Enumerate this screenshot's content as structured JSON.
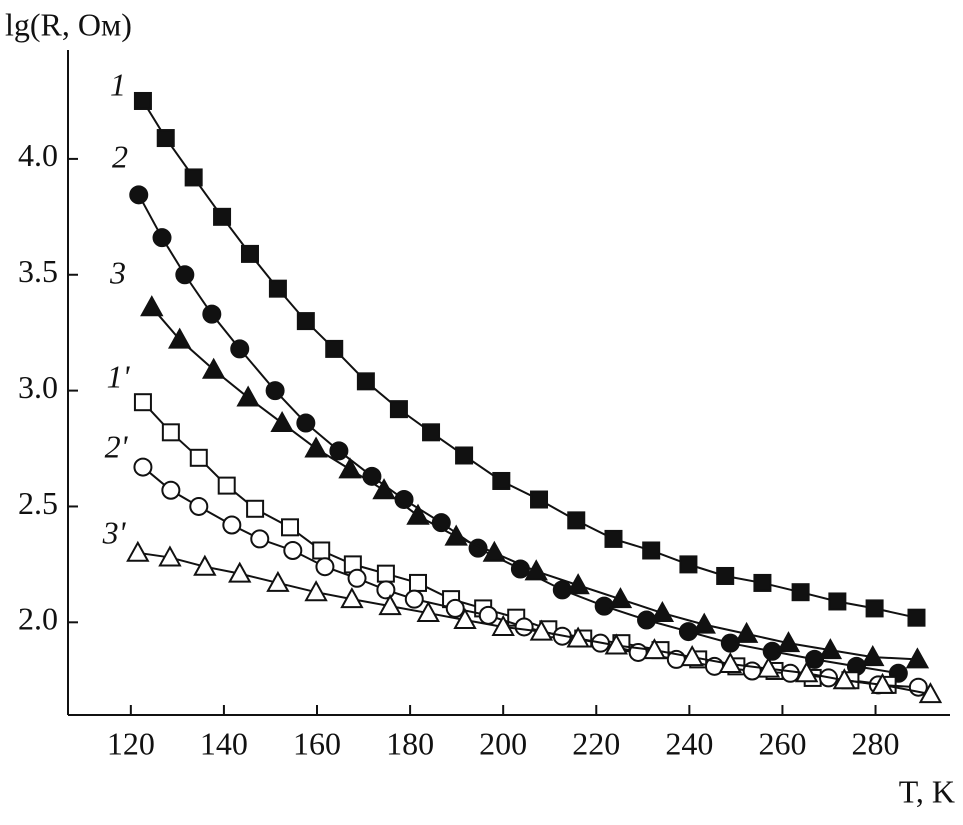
{
  "chart_data": {
    "type": "line",
    "x_label": "T, K",
    "y_label": "lg(R, Ом)",
    "xlim": [
      106.5,
      296
    ],
    "ylim": [
      1.6,
      4.47
    ],
    "xticks": [
      120,
      140,
      160,
      180,
      200,
      220,
      240,
      260,
      280
    ],
    "yticks": [
      {
        "value": 2,
        "label": "2.0"
      },
      2.5,
      {
        "value": 3,
        "label": "3.0"
      },
      3.5,
      {
        "value": 4,
        "label": "4.0"
      }
    ],
    "series": [
      {
        "name": "1",
        "color": "#111111",
        "marker": "square",
        "filled": true,
        "x": [
          122.6,
          127.5,
          133.5,
          139.6,
          145.6,
          151.6,
          157.6,
          163.7,
          170.5,
          177.6,
          184.5,
          191.6,
          199.6,
          207.7,
          215.7,
          223.7,
          231.8,
          239.8,
          247.7,
          255.7,
          263.9,
          271.8,
          279.8,
          288.8
        ],
        "values": [
          4.25,
          4.09,
          3.92,
          3.75,
          3.59,
          3.44,
          3.3,
          3.18,
          3.04,
          2.92,
          2.82,
          2.72,
          2.61,
          2.53,
          2.44,
          2.36,
          2.31,
          2.25,
          2.2,
          2.17,
          2.13,
          2.09,
          2.06,
          2.02
        ]
      },
      {
        "name": "2",
        "color": "#111111",
        "marker": "circle",
        "filled": true,
        "x": [
          121.7,
          126.7,
          131.6,
          137.4,
          143.4,
          151.0,
          157.6,
          164.7,
          171.8,
          178.7,
          186.7,
          194.6,
          203.7,
          212.7,
          221.7,
          230.8,
          239.8,
          248.8,
          257.8,
          266.9,
          275.9,
          284.9
        ],
        "values": [
          3.845,
          3.66,
          3.5,
          3.33,
          3.18,
          3.0,
          2.86,
          2.74,
          2.63,
          2.53,
          2.43,
          2.32,
          2.23,
          2.14,
          2.07,
          2.01,
          1.96,
          1.91,
          1.875,
          1.84,
          1.81,
          1.78
        ]
      },
      {
        "name": "3",
        "color": "#111111",
        "marker": "triangle",
        "filled": true,
        "x": [
          124.5,
          130.5,
          137.8,
          145.2,
          152.5,
          159.8,
          167.1,
          174.4,
          181.7,
          189.9,
          198.1,
          207.1,
          216.1,
          225.2,
          234.2,
          243.2,
          252.3,
          261.3,
          270.3,
          279.4,
          289.0
        ],
        "values": [
          3.36,
          3.22,
          3.09,
          2.97,
          2.86,
          2.75,
          2.66,
          2.57,
          2.46,
          2.37,
          2.3,
          2.22,
          2.16,
          2.1,
          2.04,
          1.99,
          1.95,
          1.91,
          1.88,
          1.85,
          1.84
        ]
      },
      {
        "name": "1'",
        "color": "#111111",
        "marker": "square",
        "filled": false,
        "x": [
          122.6,
          128.6,
          134.6,
          140.6,
          146.7,
          154.2,
          160.9,
          167.7,
          174.8,
          181.7,
          188.8,
          195.7,
          202.8,
          209.7,
          217.2,
          225.4,
          233.8,
          241.9,
          250.1,
          258.3,
          266.5,
          274.6,
          282.6
        ],
        "values": [
          2.95,
          2.82,
          2.71,
          2.59,
          2.49,
          2.41,
          2.31,
          2.25,
          2.21,
          2.17,
          2.1,
          2.06,
          2.02,
          1.97,
          1.93,
          1.91,
          1.88,
          1.84,
          1.81,
          1.79,
          1.76,
          1.75,
          1.73
        ]
      },
      {
        "name": "2'",
        "color": "#111111",
        "marker": "circle",
        "filled": false,
        "x": [
          122.6,
          128.6,
          134.6,
          141.7,
          147.7,
          154.8,
          161.7,
          168.6,
          174.8,
          180.9,
          189.7,
          196.8,
          204.5,
          212.7,
          220.9,
          229.0,
          237.2,
          245.4,
          253.5,
          261.7,
          269.9,
          280.6,
          289.2
        ],
        "values": [
          2.67,
          2.57,
          2.5,
          2.42,
          2.36,
          2.31,
          2.24,
          2.19,
          2.14,
          2.1,
          2.06,
          2.03,
          1.98,
          1.94,
          1.91,
          1.87,
          1.84,
          1.81,
          1.79,
          1.78,
          1.76,
          1.73,
          1.72
        ]
      },
      {
        "name": "3'",
        "color": "#111111",
        "marker": "triangle",
        "filled": false,
        "x": [
          121.5,
          128.4,
          135.9,
          143.4,
          151.6,
          159.8,
          167.5,
          175.7,
          183.9,
          191.8,
          200.0,
          208.2,
          216.1,
          224.3,
          232.5,
          240.6,
          248.8,
          257.0,
          265.2,
          273.3,
          281.5,
          291.8
        ],
        "values": [
          2.3,
          2.28,
          2.24,
          2.21,
          2.17,
          2.13,
          2.1,
          2.07,
          2.04,
          2.01,
          1.98,
          1.96,
          1.93,
          1.9,
          1.88,
          1.85,
          1.82,
          1.8,
          1.78,
          1.75,
          1.73,
          1.69
        ]
      }
    ]
  }
}
